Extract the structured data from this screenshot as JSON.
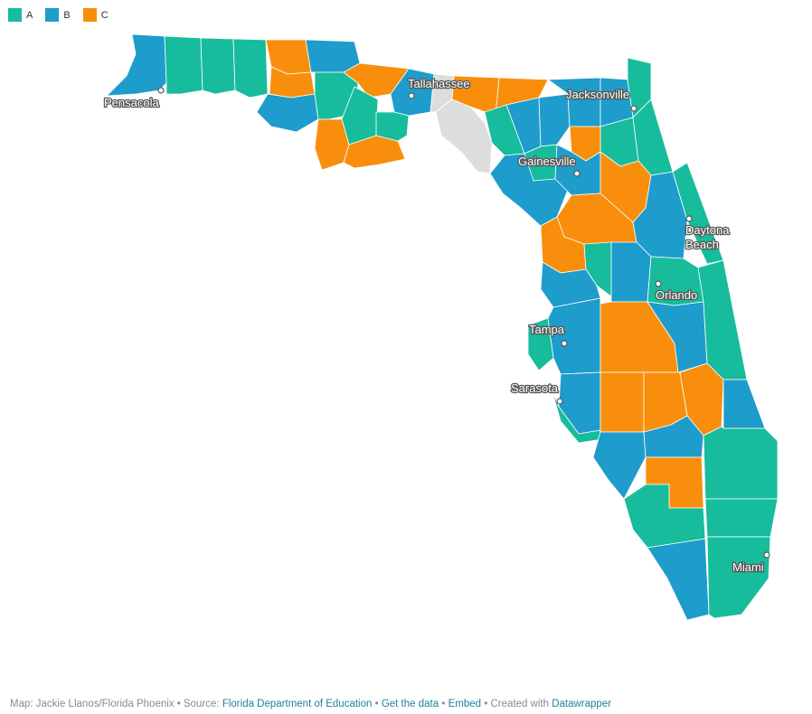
{
  "legend": [
    {
      "key": "A",
      "label": "A",
      "color": "#17bc9c"
    },
    {
      "key": "B",
      "label": "B",
      "color": "#1e9ccc"
    },
    {
      "key": "C",
      "label": "C",
      "color": "#f98e0c"
    }
  ],
  "no_data_color": "#dddddd",
  "cities": [
    {
      "name": "Pensacola"
    },
    {
      "name": "Tallahassee"
    },
    {
      "name": "Jacksonville"
    },
    {
      "name": "Gainesville"
    },
    {
      "name": "Daytona Beach",
      "lines": [
        "Daytona",
        "Beach"
      ]
    },
    {
      "name": "Orlando"
    },
    {
      "name": "Tampa"
    },
    {
      "name": "Sarasota"
    },
    {
      "name": "Miami"
    }
  ],
  "footer": {
    "credit": "Map: Jackie Llanos/Florida Phoenix",
    "source_prefix": "Source:",
    "source_link": "Florida Department of Education",
    "get_data": "Get the data",
    "embed": "Embed",
    "created_with": "Created with",
    "datawrapper": "Datawrapper",
    "sep": "•"
  }
}
